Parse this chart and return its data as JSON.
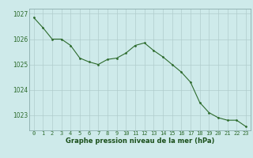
{
  "x": [
    0,
    1,
    2,
    3,
    4,
    5,
    6,
    7,
    8,
    9,
    10,
    11,
    12,
    13,
    14,
    15,
    16,
    17,
    18,
    19,
    20,
    21,
    22,
    23
  ],
  "y": [
    1026.85,
    1026.45,
    1026.0,
    1026.0,
    1025.75,
    1025.25,
    1025.1,
    1025.0,
    1025.2,
    1025.25,
    1025.45,
    1025.75,
    1025.85,
    1025.55,
    1025.3,
    1025.0,
    1024.7,
    1024.3,
    1023.5,
    1023.1,
    1022.9,
    1022.8,
    1022.8,
    1022.55
  ],
  "line_color": "#2d6b2d",
  "marker_color": "#2d6b2d",
  "bg_color": "#ceeaea",
  "grid_color": "#b0cccc",
  "xlabel": "Graphe pression niveau de la mer (hPa)",
  "xlabel_color": "#1a4f1a",
  "tick_color": "#2d6b2d",
  "ylim": [
    1022.4,
    1027.2
  ],
  "yticks": [
    1023,
    1024,
    1025,
    1026,
    1027
  ],
  "xticks": [
    0,
    1,
    2,
    3,
    4,
    5,
    6,
    7,
    8,
    9,
    10,
    11,
    12,
    13,
    14,
    15,
    16,
    17,
    18,
    19,
    20,
    21,
    22,
    23
  ],
  "spine_color": "#8aabab"
}
